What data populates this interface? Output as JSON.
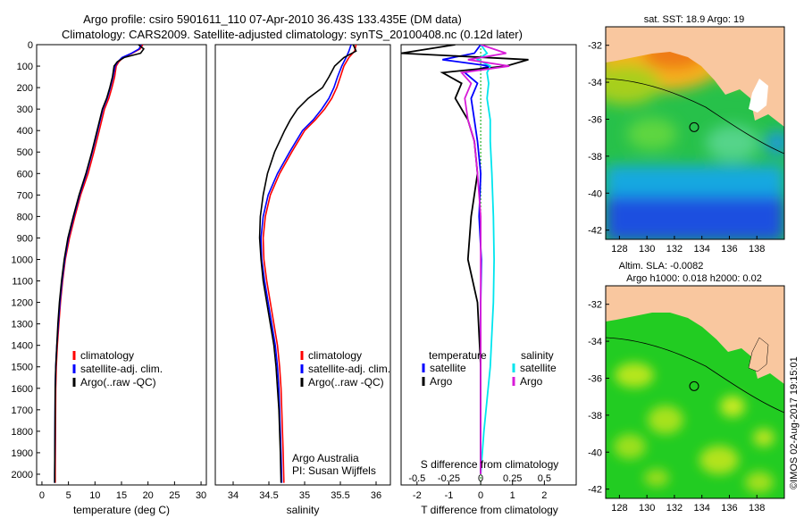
{
  "header": {
    "title_line1": "Argo profile: csiro 5901611_110 07-Apr-2010 36.43S 133.435E (DM data)",
    "title_line2": "Climatology: CARS2009. Satellite-adjusted climatology: synTS_20100408.nc (0.12d later)"
  },
  "colors": {
    "climatology": "#ff0000",
    "satellite": "#0000ff",
    "argo": "#000000",
    "satellite_salinity": "#00e5ee",
    "argo_salinity": "#d81bd8",
    "land": "#f9c79f",
    "ocean_sla": "#22cc22"
  },
  "chart_data": [
    {
      "type": "line",
      "id": "temperature-profile",
      "xlabel": "temperature (deg C)",
      "ylabel": "",
      "xlim": [
        -1,
        31
      ],
      "ylim": [
        2050,
        0
      ],
      "xticks": [
        0,
        5,
        10,
        15,
        20,
        25,
        30
      ],
      "yticks": [
        0,
        100,
        200,
        300,
        400,
        500,
        600,
        700,
        800,
        900,
        1000,
        1100,
        1200,
        1300,
        1400,
        1500,
        1600,
        1700,
        1800,
        1900,
        2000
      ],
      "legend": [
        "climatology",
        "satellite-adj. clim.",
        "Argo(..raw -QC)"
      ],
      "legend_position": "lower-middle",
      "series": [
        {
          "name": "climatology",
          "color": "#ff0000",
          "x": [
            19,
            18.5,
            17,
            15.3,
            14.5,
            14,
            13.7,
            13.2,
            12.6,
            11.8,
            10.8,
            9.8,
            8.7,
            7.3,
            6.2,
            5.2,
            4.4,
            3.9,
            3.5,
            3.2,
            2.9,
            2.7,
            2.6,
            2.55,
            2.5,
            2.5
          ],
          "y": [
            0,
            20,
            40,
            60,
            80,
            100,
            150,
            200,
            250,
            300,
            400,
            500,
            600,
            700,
            800,
            900,
            1000,
            1100,
            1200,
            1300,
            1400,
            1500,
            1600,
            1800,
            2000,
            2040
          ]
        },
        {
          "name": "satellite-adj. clim.",
          "color": "#0000ff",
          "x": [
            18.7,
            18.3,
            16.9,
            15.1,
            14.3,
            13.8,
            13.4,
            12.9,
            12.3,
            11.5,
            10.5,
            9.5,
            8.4,
            7.1,
            6.0,
            5.0,
            4.3,
            3.8,
            3.4,
            3.1,
            2.8,
            2.6,
            2.5,
            2.45,
            2.4,
            2.4
          ],
          "y": [
            0,
            20,
            40,
            60,
            80,
            100,
            150,
            200,
            250,
            300,
            400,
            500,
            600,
            700,
            800,
            900,
            1000,
            1100,
            1200,
            1300,
            1400,
            1500,
            1600,
            1800,
            2000,
            2040
          ]
        },
        {
          "name": "Argo(..raw -QC)",
          "color": "#000000",
          "x": [
            18.2,
            19.2,
            18.6,
            15.5,
            14.2,
            13.6,
            13.3,
            12.8,
            12.2,
            11.4,
            10.4,
            9.4,
            8.3,
            7.0,
            5.9,
            4.9,
            4.2,
            3.7,
            3.3,
            3.0,
            2.8,
            2.6,
            2.5,
            2.45,
            2.4,
            2.4
          ],
          "y": [
            0,
            20,
            40,
            60,
            80,
            100,
            150,
            200,
            250,
            300,
            400,
            500,
            600,
            700,
            800,
            900,
            1000,
            1100,
            1200,
            1300,
            1400,
            1500,
            1600,
            1800,
            2000,
            2040
          ]
        }
      ]
    },
    {
      "type": "line",
      "id": "salinity-profile",
      "xlabel": "salinity",
      "ylabel": "",
      "xlim": [
        33.75,
        36.2
      ],
      "ylim": [
        2050,
        0
      ],
      "xticks": [
        34,
        34.5,
        35,
        35.5,
        36
      ],
      "legend": [
        "climatology",
        "satellite-adj. clim.",
        "Argo(..raw -QC)"
      ],
      "legend_position": "lower-middle",
      "annotation": [
        "Argo Australia",
        "PI: Susan Wijffels"
      ],
      "series": [
        {
          "name": "climatology",
          "color": "#ff0000",
          "x": [
            35.72,
            35.7,
            35.62,
            35.55,
            35.5,
            35.45,
            35.38,
            35.28,
            35.15,
            35.0,
            34.82,
            34.65,
            34.52,
            34.45,
            34.42,
            34.43,
            34.47,
            34.52,
            34.57,
            34.62,
            34.65,
            34.67,
            34.68,
            34.69,
            34.7,
            34.71
          ],
          "y": [
            0,
            30,
            60,
            100,
            150,
            200,
            250,
            300,
            350,
            400,
            500,
            600,
            700,
            800,
            900,
            1000,
            1100,
            1200,
            1300,
            1400,
            1500,
            1600,
            1700,
            1800,
            1900,
            2040
          ]
        },
        {
          "name": "satellite-adj. clim.",
          "color": "#0000ff",
          "x": [
            35.65,
            35.62,
            35.58,
            35.52,
            35.46,
            35.41,
            35.34,
            35.24,
            35.12,
            34.97,
            34.79,
            34.62,
            34.49,
            34.42,
            34.39,
            34.4,
            34.44,
            34.49,
            34.54,
            34.59,
            34.62,
            34.64,
            34.65,
            34.66,
            34.67,
            34.68
          ],
          "y": [
            0,
            30,
            60,
            100,
            150,
            200,
            250,
            300,
            350,
            400,
            500,
            600,
            700,
            800,
            900,
            1000,
            1100,
            1200,
            1300,
            1400,
            1500,
            1600,
            1700,
            1800,
            1900,
            2040
          ]
        },
        {
          "name": "Argo(..raw -QC)",
          "color": "#000000",
          "x": [
            35.68,
            35.72,
            35.55,
            35.42,
            35.34,
            35.25,
            35.05,
            34.9,
            34.8,
            34.72,
            34.58,
            34.48,
            34.42,
            34.38,
            34.37,
            34.39,
            34.42,
            34.47,
            34.52,
            34.57,
            34.6,
            34.62,
            34.64,
            34.65,
            34.66,
            34.67
          ],
          "y": [
            0,
            30,
            60,
            100,
            150,
            200,
            250,
            300,
            350,
            400,
            500,
            600,
            700,
            800,
            900,
            1000,
            1100,
            1200,
            1300,
            1400,
            1500,
            1600,
            1700,
            1800,
            1900,
            2040
          ]
        }
      ]
    },
    {
      "type": "line",
      "id": "difference-profile",
      "xlabel": "T difference from climatology",
      "xlabel_top": "S difference from climatology",
      "xlim": [
        -2.5,
        3
      ],
      "ylim": [
        2050,
        0
      ],
      "xticks_T": [
        -2,
        -1,
        0,
        1,
        2
      ],
      "xticks_S": [
        -0.5,
        -0.25,
        0,
        0.25,
        0.5
      ],
      "legend_temperature_title": "temperature",
      "legend_salinity_title": "salinity",
      "legend_temperature": [
        "satellite",
        "Argo"
      ],
      "legend_salinity": [
        "satellite",
        "Argo"
      ],
      "legend_position": "lower-middle",
      "series": [
        {
          "name": "satellite",
          "group": "temperature",
          "color": "#0000ff",
          "x": [
            0,
            -0.2,
            -1.2,
            0.3,
            -0.5,
            -0.1,
            -0.3,
            -0.2,
            -0.1,
            0,
            -0.05,
            0.02,
            0,
            0,
            0,
            0
          ],
          "y": [
            0,
            40,
            70,
            100,
            130,
            180,
            250,
            350,
            450,
            600,
            800,
            1000,
            1200,
            1500,
            1800,
            2000
          ]
        },
        {
          "name": "Argo",
          "group": "temperature",
          "color": "#000000",
          "x": [
            -0.8,
            -2.5,
            1.5,
            0.8,
            -1.2,
            -0.6,
            -0.8,
            -0.4,
            -0.2,
            -0.1,
            -0.3,
            -0.4,
            -0.1,
            0,
            0,
            0
          ],
          "y": [
            0,
            40,
            70,
            100,
            130,
            180,
            250,
            350,
            450,
            600,
            800,
            1000,
            1200,
            1500,
            1800,
            2000
          ]
        },
        {
          "name": "satellite",
          "group": "salinity",
          "color": "#00e5ee",
          "x": [
            0,
            0.2,
            -0.1,
            0.3,
            0.2,
            0.25,
            0.2,
            0.3,
            0.3,
            0.35,
            0.4,
            0.42,
            0.4,
            0.3,
            0.1,
            0
          ],
          "y": [
            0,
            40,
            70,
            100,
            130,
            180,
            250,
            350,
            450,
            600,
            800,
            1000,
            1200,
            1500,
            1800,
            2000
          ]
        },
        {
          "name": "Argo",
          "group": "salinity",
          "color": "#d81bd8",
          "x": [
            0,
            0.8,
            -0.4,
            0.9,
            -0.6,
            -0.3,
            -0.5,
            -0.4,
            -0.2,
            -0.1,
            0,
            0,
            0,
            0,
            0,
            0
          ],
          "y": [
            0,
            40,
            70,
            100,
            130,
            180,
            250,
            350,
            450,
            600,
            800,
            1000,
            1200,
            1500,
            1800,
            2000
          ]
        }
      ]
    },
    {
      "type": "heatmap",
      "id": "sst-map",
      "title": "sat. SST: 18.9 Argo: 19",
      "xlim": [
        127,
        140
      ],
      "ylim": [
        -42.5,
        -31
      ],
      "xticks": [
        128,
        130,
        132,
        134,
        136,
        138
      ],
      "yticks": [
        -32,
        -34,
        -36,
        -38,
        -40,
        -42
      ],
      "profile_marker": {
        "lon": 133.435,
        "lat": -36.43
      }
    },
    {
      "type": "heatmap",
      "id": "sla-map",
      "title_line1": "Altim. SLA: -0.0082",
      "title_line2": "Argo h1000: 0.018 h2000: 0.02",
      "xlim": [
        127,
        140
      ],
      "ylim": [
        -42.5,
        -31
      ],
      "xticks": [
        128,
        130,
        132,
        134,
        136,
        138
      ],
      "yticks": [
        -32,
        -34,
        -36,
        -38,
        -40,
        -42
      ],
      "profile_marker": {
        "lon": 133.435,
        "lat": -36.43
      }
    }
  ],
  "footer": {
    "stamp": "©IMOS 02-Aug-2017 19:15:01"
  }
}
